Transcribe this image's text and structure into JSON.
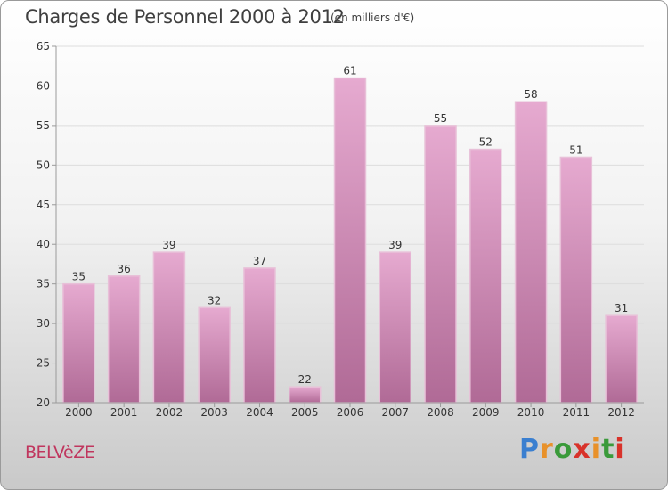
{
  "title": "Charges de Personnel 2000 à 2012",
  "subtitle": "(en milliers d'€)",
  "place": "BELVèZE",
  "logo": {
    "letters": [
      "P",
      "r",
      "o",
      "x",
      "i",
      "t",
      "i"
    ],
    "colors": [
      "#3a7fd0",
      "#e8912a",
      "#3a9a3a",
      "#d8322a",
      "#e8912a",
      "#3a9a3a",
      "#d8322a"
    ]
  },
  "colors": {
    "bar": "#d68fbb",
    "bar_edge": "#e8c0d8",
    "axis": "#9a9a9a",
    "grid": "#dddddd"
  },
  "chart_data": {
    "type": "bar",
    "categories": [
      "2000",
      "2001",
      "2002",
      "2003",
      "2004",
      "2005",
      "2006",
      "2007",
      "2008",
      "2009",
      "2010",
      "2011",
      "2012"
    ],
    "values": [
      35,
      36,
      39,
      32,
      37,
      22,
      61,
      39,
      55,
      52,
      58,
      51,
      31
    ],
    "ylim": [
      20,
      65
    ],
    "yticks": [
      20,
      25,
      30,
      35,
      40,
      45,
      50,
      55,
      60,
      65
    ],
    "title": "Charges de Personnel 2000 à 2012",
    "xlabel": "",
    "ylabel": "",
    "grid": true
  }
}
